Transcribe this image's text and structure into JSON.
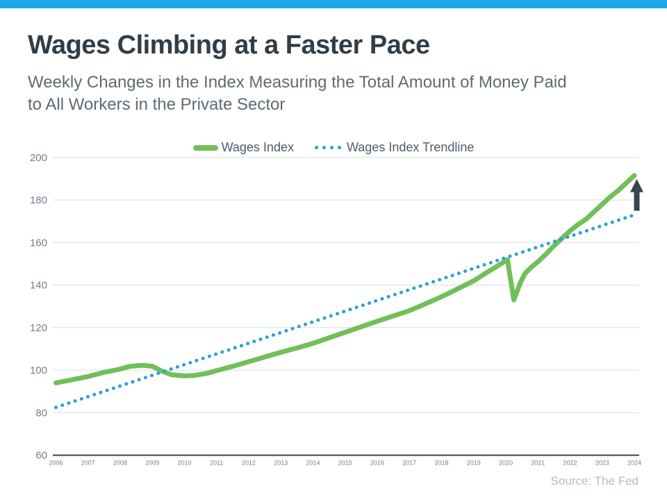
{
  "page": {
    "title": "Wages Climbing at a Faster Pace",
    "subtitle_line1": "Weekly Changes in the Index Measuring the Total Amount of Money Paid",
    "subtitle_line2": "to All Workers in the Private Sector",
    "source": "Source: The Fed"
  },
  "colors": {
    "accent_bar": "#19A8EC",
    "wages_index": "#72BF5A",
    "trendline": "#2DA0D8",
    "arrow": "#3A444E",
    "title_text": "#313D47",
    "subtitle_text": "#5E6A72",
    "axis_text": "#73808D",
    "gridline": "#DADDE0",
    "axis_line": "#3C4043",
    "source_text": "#B3BCC4"
  },
  "legend": {
    "items": [
      {
        "label": "Wages Index",
        "marker": "solid-line",
        "color": "#72BF5A"
      },
      {
        "label": "Wages Index Trendline",
        "marker": "dotted-line",
        "color": "#2DA0D8"
      }
    ]
  },
  "chart_data": {
    "type": "line",
    "title": "",
    "xlabel": "",
    "ylabel": "",
    "xlim": [
      2006,
      2024
    ],
    "ylim": [
      60,
      200
    ],
    "x_ticks": [
      2006,
      2007,
      2008,
      2009,
      2010,
      2011,
      2012,
      2013,
      2014,
      2015,
      2016,
      2017,
      2018,
      2019,
      2020,
      2021,
      2022,
      2023,
      2024
    ],
    "y_ticks": [
      60,
      80,
      100,
      120,
      140,
      160,
      180,
      200
    ],
    "grid": "horizontal",
    "legend_position": "top-center",
    "series": [
      {
        "name": "Wages Index",
        "style": "solid",
        "color": "#72BF5A",
        "x": [
          2006,
          2006.5,
          2007,
          2007.5,
          2008,
          2008.3,
          2008.7,
          2009,
          2009.3,
          2009.6,
          2010,
          2010.3,
          2010.7,
          2011,
          2011.5,
          2012,
          2012.5,
          2013,
          2013.5,
          2014,
          2014.5,
          2015,
          2015.5,
          2016,
          2016.5,
          2017,
          2017.5,
          2018,
          2018.5,
          2019,
          2019.5,
          2019.8,
          2020.05,
          2020.25,
          2020.45,
          2020.6,
          2020.8,
          2021,
          2021.25,
          2021.5,
          2021.75,
          2022,
          2022.25,
          2022.5,
          2022.75,
          2023,
          2023.25,
          2023.5,
          2023.75,
          2024
        ],
        "y": [
          94,
          95.5,
          97,
          99,
          100.5,
          101.8,
          102.3,
          101.8,
          99.5,
          97.8,
          97.3,
          97.5,
          98.5,
          99.8,
          101.8,
          104,
          106.2,
          108.4,
          110.4,
          112.6,
          115.2,
          117.8,
          120.4,
          123,
          125.5,
          128,
          131.2,
          134.5,
          138.2,
          142,
          146.8,
          149.5,
          152,
          133,
          141,
          145.5,
          148.5,
          151,
          154.5,
          158.5,
          162,
          165.5,
          168.5,
          171,
          174.5,
          178,
          181.5,
          184.5,
          188,
          191.5
        ]
      },
      {
        "name": "Wages Index Trendline",
        "style": "dotted",
        "color": "#2DA0D8",
        "x": [
          2006,
          2024
        ],
        "y": [
          82.5,
          173
        ]
      }
    ],
    "annotations": [
      {
        "type": "up-arrow",
        "x": 2024,
        "y_from": 173,
        "y_to": 191.5,
        "color": "#3A444E",
        "meaning": "gap between wages index and trendline"
      }
    ]
  }
}
